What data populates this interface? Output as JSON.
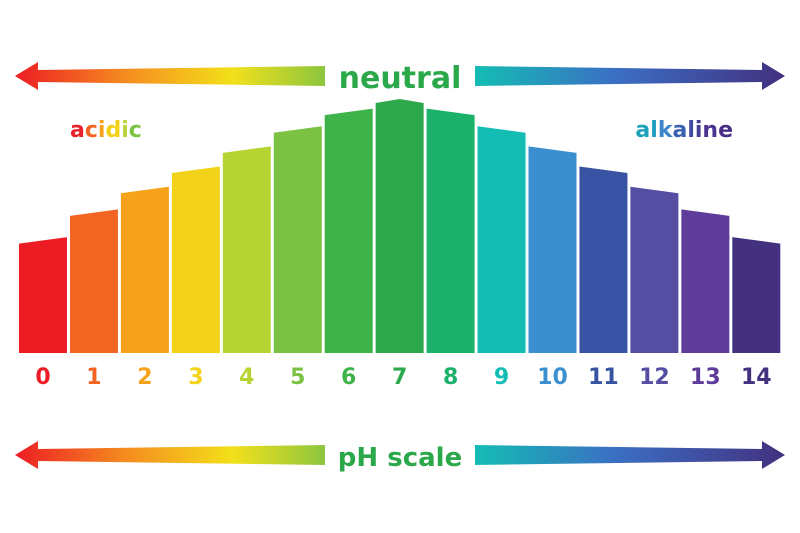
{
  "labels": {
    "neutral": "neutral",
    "acidic": "acidic",
    "alkaline": "alkaline",
    "ph_scale": "pH scale"
  },
  "acidic_letter_colors": [
    "#e8222a",
    "#f26522",
    "#f6a21a",
    "#f2d016",
    "#b9d23a",
    "#7dc242"
  ],
  "alkaline_letter_colors": [
    "#1aa3b8",
    "#1e9fc1",
    "#3b85c8",
    "#3a5fb0",
    "#3d4aa0",
    "#433e95",
    "#4b3590",
    "#4a2d85"
  ],
  "colors": {
    "neutral_text": "#2aa84a",
    "ph_scale_text": "#2aa84a"
  },
  "levels": [
    {
      "ph": "0",
      "color": "#ed1c24",
      "level": 0.44
    },
    {
      "ph": "1",
      "color": "#f26522",
      "level": 0.55
    },
    {
      "ph": "2",
      "color": "#f7a21b",
      "level": 0.64
    },
    {
      "ph": "3",
      "color": "#f3d319",
      "level": 0.72
    },
    {
      "ph": "4",
      "color": "#b5d333",
      "level": 0.8
    },
    {
      "ph": "5",
      "color": "#7cc242",
      "level": 0.88
    },
    {
      "ph": "6",
      "color": "#3eb34a",
      "level": 0.95
    },
    {
      "ph": "7",
      "color": "#2ea84c",
      "level": 1.0
    },
    {
      "ph": "8",
      "color": "#1bb16a",
      "level": 0.95
    },
    {
      "ph": "9",
      "color": "#13bdb3",
      "level": 0.88
    },
    {
      "ph": "10",
      "color": "#3b8fcf",
      "level": 0.8
    },
    {
      "ph": "11",
      "color": "#3853a4",
      "level": 0.72
    },
    {
      "ph": "12",
      "color": "#554ea2",
      "level": 0.64
    },
    {
      "ph": "13",
      "color": "#5e3c99",
      "level": 0.55
    },
    {
      "ph": "14",
      "color": "#43307f",
      "level": 0.44
    }
  ]
}
